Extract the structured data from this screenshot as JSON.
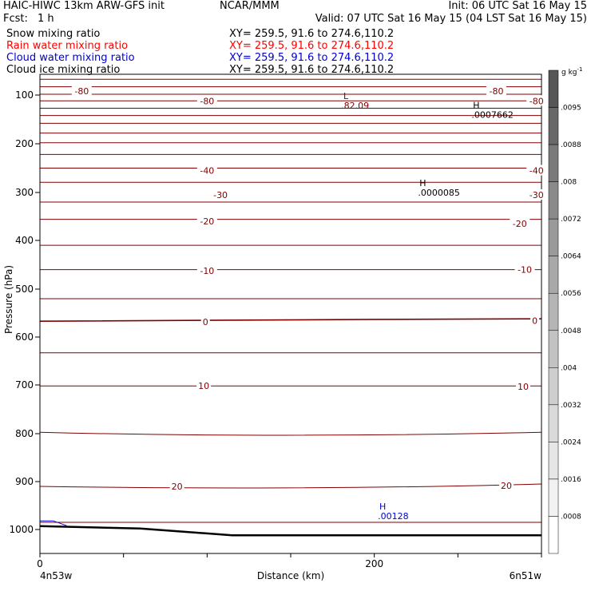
{
  "header": {
    "title_left": "HAIC-HIWC 13km ARW-GFS init",
    "title_center": "NCAR/MMM",
    "init": "Init: 06 UTC Sat 16 May 15",
    "fcst_label": "Fcst:",
    "fcst_value": "1 h",
    "valid": "Valid: 07 UTC Sat 16 May 15 (04 LST Sat 16 May 15)",
    "fields": [
      {
        "name": "Snow mixing ratio",
        "xy": "XY= 259.5, 91.6 to 274.6,110.2",
        "color": "#000000"
      },
      {
        "name": "Rain water mixing ratio",
        "xy": "XY= 259.5, 91.6 to 274.6,110.2",
        "color": "#ff0000"
      },
      {
        "name": "Cloud water mixing ratio",
        "xy": "XY= 259.5, 91.6 to 274.6,110.2",
        "color": "#0000cc"
      },
      {
        "name": "Cloud ice mixing ratio",
        "xy": "XY= 259.5, 91.6 to 274.6,110.2",
        "color": "#000000"
      }
    ]
  },
  "chart_data": {
    "type": "cross-section contour",
    "xlabel": "Distance (km)",
    "ylabel": "Pressure (hPa)",
    "x_ticks": [
      "0",
      "200"
    ],
    "x_endpoint_labels": {
      "left": "4n53w",
      "right": "6n51w"
    },
    "xlim": [
      0,
      300
    ],
    "ylim": [
      1050,
      50
    ],
    "y_ticks": [
      "100",
      "200",
      "300",
      "400",
      "500",
      "600",
      "700",
      "800",
      "900",
      "1000"
    ],
    "temperature_contours": {
      "color": "#800000",
      "levels_c": [
        -85,
        -80,
        -75,
        -70,
        -65,
        -60,
        -55,
        -50,
        -45,
        -40,
        -35,
        -30,
        -25,
        -20,
        -15,
        -10,
        -5,
        0,
        5,
        10,
        15,
        20,
        25
      ],
      "labels": [
        {
          "text": "-80",
          "x_km": 25,
          "p": 90
        },
        {
          "text": "-80",
          "x_km": 100,
          "p": 112
        },
        {
          "text": "-80",
          "x_km": 273,
          "p": 90
        },
        {
          "text": "-80",
          "x_km": 297,
          "p": 112
        },
        {
          "text": "-40",
          "x_km": 100,
          "p": 255
        },
        {
          "text": "-40",
          "x_km": 297,
          "p": 255
        },
        {
          "text": "-30",
          "x_km": 108,
          "p": 305
        },
        {
          "text": "-30",
          "x_km": 297,
          "p": 305
        },
        {
          "text": "-20",
          "x_km": 100,
          "p": 360
        },
        {
          "text": "-20",
          "x_km": 287,
          "p": 365
        },
        {
          "text": "-10",
          "x_km": 100,
          "p": 462
        },
        {
          "text": "-10",
          "x_km": 290,
          "p": 460
        },
        {
          "text": "0",
          "x_km": 99,
          "p": 568
        },
        {
          "text": "0",
          "x_km": 296,
          "p": 566
        },
        {
          "text": "10",
          "x_km": 98,
          "p": 702
        },
        {
          "text": "10",
          "x_km": 289,
          "p": 703
        },
        {
          "text": "20",
          "x_km": 82,
          "p": 910
        },
        {
          "text": "20",
          "x_km": 279,
          "p": 908
        }
      ]
    },
    "extrema": [
      {
        "type": "L",
        "value": ".82.09",
        "x_km": 183,
        "p": 108,
        "color": "#800000"
      },
      {
        "type": "H",
        "value": ".0007662",
        "x_km": 261,
        "p": 127,
        "color": "#000000"
      },
      {
        "type": "H",
        "value": ".0000085",
        "x_km": 229,
        "p": 287,
        "color": "#000000"
      },
      {
        "type": "H",
        "value": ".00128",
        "x_km": 205,
        "p": 958,
        "color": "#0000cc"
      }
    ],
    "colorbar": {
      "unit": "g kg",
      "unit_exp": "-1",
      "ticks": [
        ".0008",
        ".0016",
        ".0024",
        ".0032",
        ".004",
        ".0048",
        ".0056",
        ".0064",
        ".0072",
        ".008",
        ".0088",
        ".0095"
      ],
      "colors": [
        "#ffffff",
        "#f2f2f2",
        "#e6e6e6",
        "#dadada",
        "#cecece",
        "#c2c2c2",
        "#b5b5b5",
        "#a8a8a8",
        "#9a9a9a",
        "#8a8a8a",
        "#7a7a7a",
        "#686868",
        "#565656"
      ]
    }
  }
}
